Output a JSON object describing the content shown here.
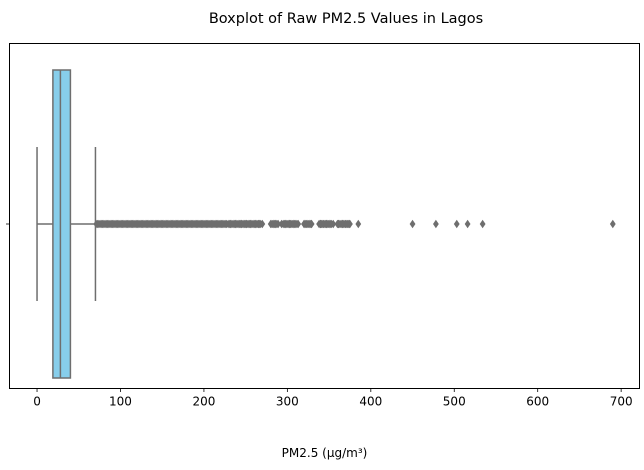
{
  "chart_data": {
    "type": "boxplot",
    "orientation": "horizontal",
    "title": "Boxplot of Raw PM2.5 Values in Lagos",
    "xlabel": "PM2.5 (µg/m³)",
    "ylabel": "",
    "xlim": [
      -33,
      722
    ],
    "x_ticks": [
      0,
      100,
      200,
      300,
      400,
      500,
      600,
      700
    ],
    "grid": false,
    "colors": {
      "box_fill": "#87CEEB",
      "line": "#6E6E6E"
    },
    "box": {
      "whisker_low": 0,
      "q1": 19,
      "median": 28,
      "q3": 40,
      "whisker_high": 70
    },
    "outliers": {
      "dense_ranges": [
        [
          71,
          228
        ],
        [
          229,
          268
        ],
        [
          280,
          290
        ],
        [
          295,
          312
        ],
        [
          320,
          330
        ],
        [
          338,
          354
        ],
        [
          360,
          375
        ]
      ],
      "points": [
        232,
        238,
        245,
        251,
        256,
        262,
        266,
        270,
        283,
        286,
        293,
        298,
        303,
        307,
        313,
        320,
        326,
        329,
        340,
        343,
        347,
        350,
        355,
        361,
        366,
        370,
        374,
        385,
        450,
        478,
        503,
        516,
        534,
        690
      ]
    }
  }
}
